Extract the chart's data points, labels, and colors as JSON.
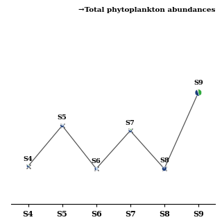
{
  "title": "→Total phytoplankton abundances",
  "stations": [
    "S4",
    "S5",
    "S6",
    "S7",
    "S8",
    "S9"
  ],
  "x_positions": [
    0,
    1,
    2,
    3,
    4,
    5
  ],
  "pie_radii": [
    0.042,
    0.055,
    0.05,
    0.052,
    0.065,
    0.095
  ],
  "pie_y_data": [
    0.3,
    0.62,
    0.28,
    0.58,
    0.28,
    0.88
  ],
  "pie_data": [
    [
      3,
      0,
      82,
      15,
      0
    ],
    [
      0,
      12,
      68,
      0,
      20
    ],
    [
      0,
      0,
      55,
      0,
      45
    ],
    [
      5,
      8,
      72,
      15,
      0
    ],
    [
      2,
      2,
      96,
      0,
      0
    ],
    [
      5,
      2,
      48,
      45,
      0
    ]
  ],
  "pie_colors": [
    "#E8721C",
    "#5C4A1A",
    "#1C3D7A",
    "#2EAA3C",
    "#A8C8E8"
  ],
  "colors": {
    "Euglenophyceae": "#E8721C",
    "Criptophyceae": "#5C4A1A",
    "Bacillariophyceae": "#1C3D7A",
    "Chlorophyceae": "#2EAA3C"
  },
  "line_marker_x": [
    0,
    1,
    2,
    3,
    4,
    5
  ],
  "line_marker_y": [
    0.3,
    0.62,
    0.28,
    0.58,
    0.28,
    0.88
  ],
  "ylim": [
    0.0,
    1.05
  ],
  "xlim": [
    -0.5,
    5.5
  ],
  "background_color": "#FFFFFF"
}
